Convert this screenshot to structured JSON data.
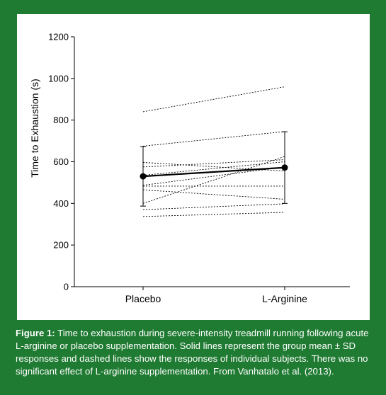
{
  "chart_data": {
    "type": "line",
    "ylabel": "Time to Exhaustion (s)",
    "xlabel": "",
    "categories": [
      "Placebo",
      "L-Arginine"
    ],
    "ylim": [
      0,
      1200
    ],
    "yticks": [
      0,
      200,
      400,
      600,
      800,
      1000,
      1200
    ],
    "mean": {
      "values": [
        530,
        572
      ],
      "sd": [
        143,
        172
      ],
      "style": "solid",
      "marker": "filled-circle"
    },
    "subjects": [
      [
        840,
        960
      ],
      [
        675,
        745
      ],
      [
        597,
        555
      ],
      [
        575,
        610
      ],
      [
        535,
        600
      ],
      [
        487,
        575
      ],
      [
        483,
        483
      ],
      [
        465,
        420
      ],
      [
        400,
        625
      ],
      [
        370,
        398
      ],
      [
        337,
        357
      ]
    ],
    "subject_style": "dashed",
    "grid": false
  },
  "caption": {
    "label": "Figure 1:",
    "text": "Time to exhaustion during severe-intensity treadmill running following acute L-arginine or placebo supplementation. Solid lines represent the group mean ± SD responses and dashed lines show the responses of individual subjects. There was no significant effect of L-arginine supplementation. From Vanhatalo et al. (2013)."
  },
  "colors": {
    "background": "#1f7a32",
    "panel": "#ffffff",
    "ink": "#000000"
  }
}
